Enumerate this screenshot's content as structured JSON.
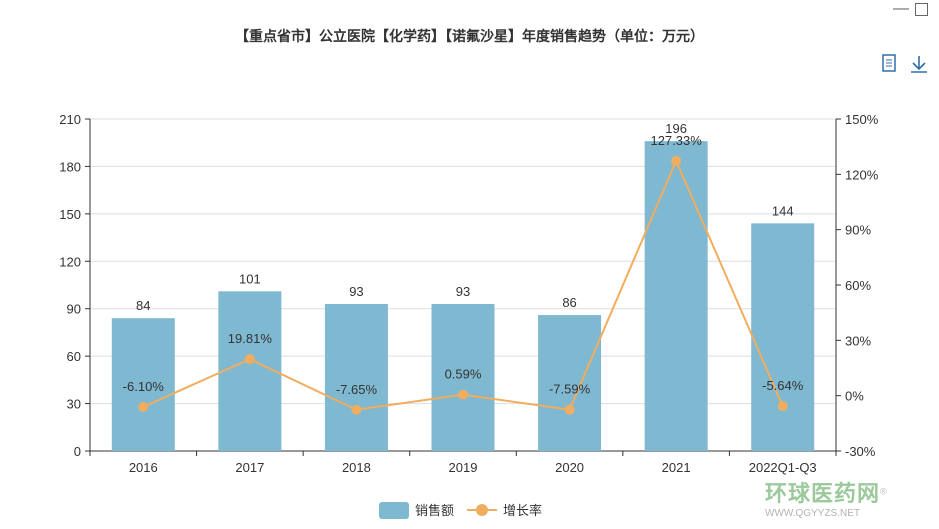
{
  "window": {
    "minimize_icon": "minimize-icon",
    "maximize_icon": "maximize-icon"
  },
  "toolbar": {
    "data_view_icon": "document-icon",
    "download_icon": "download-icon"
  },
  "watermark": {
    "cn": "环球医药网",
    "en": "WWW.QGYYZS.NET",
    "mark": "®"
  },
  "colors": {
    "bar": "#7fb8d1",
    "line": "#f0ad5f"
  },
  "chart_data": {
    "type": "bar",
    "title": "【重点省市】公立医院【化学药】【诺氟沙星】年度销售趋势（单位：万元）",
    "categories": [
      "2016",
      "2017",
      "2018",
      "2019",
      "2020",
      "2021",
      "2022Q1-Q3"
    ],
    "series": [
      {
        "name": "销售额",
        "type": "bar",
        "axis": "left",
        "values": [
          84,
          101,
          93,
          93,
          86,
          196,
          144
        ],
        "labels": [
          "84",
          "101",
          "93",
          "93",
          "86",
          "196",
          "144"
        ]
      },
      {
        "name": "增长率",
        "type": "line",
        "axis": "right",
        "values": [
          -6.1,
          19.81,
          -7.65,
          0.59,
          -7.59,
          127.33,
          -5.64
        ],
        "labels": [
          "-6.10%",
          "19.81%",
          "-7.65%",
          "0.59%",
          "-7.59%",
          "127.33%",
          "-5.64%"
        ]
      }
    ],
    "yleft": {
      "range": [
        0,
        210
      ],
      "ticks": [
        "0",
        "30",
        "60",
        "90",
        "120",
        "150",
        "180",
        "210"
      ]
    },
    "yright": {
      "range": [
        -30,
        150
      ],
      "ticks": [
        "-30%",
        "0%",
        "30%",
        "60%",
        "90%",
        "120%",
        "150%"
      ]
    },
    "grid": true,
    "legend_position": "bottom-center"
  }
}
